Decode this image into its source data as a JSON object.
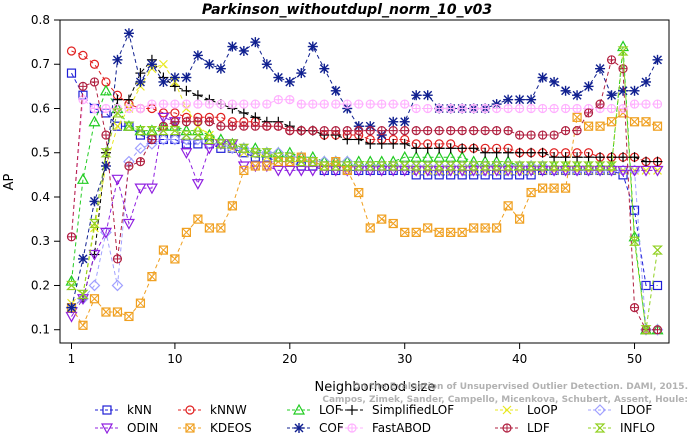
{
  "chart_data": {
    "type": "line",
    "title": "Parkinson_withoutdupl_norm_10_v03",
    "xlabel": "Neighborhood size",
    "ylabel": "AP",
    "xlim": [
      0,
      53
    ],
    "ylim": [
      0.07,
      0.8
    ],
    "xticks": [
      1,
      10,
      20,
      30,
      40,
      50
    ],
    "yticks": [
      0.1,
      0.2,
      0.3,
      0.4,
      0.5,
      0.6,
      0.7,
      0.8
    ],
    "xtick_labels": [
      "1",
      "10",
      "20",
      "30",
      "40",
      "50"
    ],
    "ytick_labels": [
      "0.1",
      "0.2",
      "0.3",
      "0.4",
      "0.5",
      "0.6",
      "0.7",
      "0.8"
    ],
    "grid": false,
    "legend_position": "bottom",
    "watermark": "Campos, Zimek, Sander, Campello, Micenkova, Schubert, Assent, Houle: On the Evaluation of Unsupervised Outlier Detection. DAMI, 2015.",
    "x": [
      1,
      2,
      3,
      4,
      5,
      6,
      7,
      8,
      9,
      10,
      11,
      12,
      13,
      14,
      15,
      16,
      17,
      18,
      19,
      20,
      21,
      22,
      23,
      24,
      25,
      26,
      27,
      28,
      29,
      30,
      31,
      32,
      33,
      34,
      35,
      36,
      37,
      38,
      39,
      40,
      41,
      42,
      43,
      44,
      45,
      46,
      47,
      48,
      49,
      50,
      51,
      52
    ],
    "series": [
      {
        "name": "kNN",
        "color": "#1f1fd6",
        "marker": "square",
        "values": [
          0.68,
          0.63,
          0.6,
          0.59,
          0.56,
          0.56,
          0.54,
          0.53,
          0.53,
          0.53,
          0.52,
          0.52,
          0.52,
          0.51,
          0.51,
          0.5,
          0.49,
          0.49,
          0.48,
          0.48,
          0.47,
          0.47,
          0.46,
          0.46,
          0.46,
          0.46,
          0.46,
          0.46,
          0.46,
          0.46,
          0.45,
          0.45,
          0.45,
          0.45,
          0.45,
          0.45,
          0.45,
          0.45,
          0.45,
          0.45,
          0.45,
          0.46,
          0.46,
          0.46,
          0.46,
          0.46,
          0.46,
          0.46,
          0.45,
          0.37,
          0.2,
          0.2
        ]
      },
      {
        "name": "kNNW",
        "color": "#e02020",
        "marker": "circle",
        "values": [
          0.73,
          0.72,
          0.7,
          0.66,
          0.63,
          0.61,
          0.6,
          0.6,
          0.59,
          0.59,
          0.58,
          0.58,
          0.58,
          0.58,
          0.57,
          0.57,
          0.57,
          0.56,
          0.56,
          0.55,
          0.55,
          0.55,
          0.54,
          0.54,
          0.54,
          0.54,
          0.53,
          0.53,
          0.53,
          0.53,
          0.52,
          0.52,
          0.52,
          0.52,
          0.51,
          0.51,
          0.51,
          0.51,
          0.51,
          0.5,
          0.5,
          0.5,
          0.5,
          0.5,
          0.5,
          0.5,
          0.49,
          0.49,
          0.49,
          0.49,
          0.48,
          0.48
        ]
      },
      {
        "name": "LOF",
        "color": "#22cc22",
        "marker": "triangle-up",
        "values": [
          0.21,
          0.44,
          0.57,
          0.64,
          0.6,
          0.56,
          0.55,
          0.55,
          0.56,
          0.56,
          0.55,
          0.55,
          0.54,
          0.53,
          0.52,
          0.51,
          0.51,
          0.5,
          0.5,
          0.5,
          0.49,
          0.49,
          0.48,
          0.48,
          0.48,
          0.48,
          0.48,
          0.48,
          0.48,
          0.49,
          0.49,
          0.49,
          0.49,
          0.49,
          0.49,
          0.48,
          0.48,
          0.48,
          0.48,
          0.47,
          0.47,
          0.47,
          0.47,
          0.47,
          0.47,
          0.47,
          0.47,
          0.47,
          0.74,
          0.31,
          0.1,
          0.1
        ]
      },
      {
        "name": "SimplifiedLOF",
        "color": "#000000",
        "marker": "plus",
        "values": [
          0.15,
          0.17,
          0.27,
          0.5,
          0.62,
          0.62,
          0.68,
          0.71,
          0.67,
          0.65,
          0.64,
          0.63,
          0.62,
          0.61,
          0.6,
          0.59,
          0.58,
          0.57,
          0.57,
          0.56,
          0.55,
          0.55,
          0.54,
          0.54,
          0.53,
          0.53,
          0.52,
          0.52,
          0.52,
          0.52,
          0.51,
          0.51,
          0.51,
          0.51,
          0.51,
          0.51,
          0.5,
          0.5,
          0.5,
          0.5,
          0.5,
          0.5,
          0.49,
          0.49,
          0.49,
          0.49,
          0.49,
          0.49,
          0.49,
          0.49,
          0.48,
          0.48
        ]
      },
      {
        "name": "LoOP",
        "color": "#e8e820",
        "marker": "x",
        "values": [
          0.16,
          0.18,
          0.33,
          0.47,
          0.56,
          0.6,
          0.65,
          0.69,
          0.7,
          0.66,
          0.6,
          0.56,
          0.54,
          0.52,
          0.51,
          0.5,
          0.5,
          0.49,
          0.49,
          0.48,
          0.48,
          0.48,
          0.47,
          0.47,
          0.47,
          0.47,
          0.47,
          0.47,
          0.47,
          0.47,
          0.46,
          0.46,
          0.46,
          0.46,
          0.46,
          0.46,
          0.46,
          0.46,
          0.46,
          0.46,
          0.46,
          0.46,
          0.46,
          0.46,
          0.46,
          0.46,
          0.46,
          0.46,
          0.46,
          0.46,
          0.46,
          0.46
        ]
      },
      {
        "name": "LDOF",
        "color": "#a0a0ff",
        "marker": "diamond",
        "values": [
          0.15,
          0.17,
          0.2,
          0.32,
          0.2,
          0.48,
          0.51,
          0.52,
          0.53,
          0.53,
          0.53,
          0.53,
          0.52,
          0.52,
          0.51,
          0.51,
          0.5,
          0.5,
          0.5,
          0.49,
          0.49,
          0.48,
          0.48,
          0.48,
          0.48,
          0.47,
          0.47,
          0.47,
          0.47,
          0.47,
          0.47,
          0.47,
          0.47,
          0.47,
          0.47,
          0.47,
          0.47,
          0.47,
          0.47,
          0.47,
          0.47,
          0.47,
          0.46,
          0.46,
          0.46,
          0.46,
          0.46,
          0.46,
          0.46,
          0.46,
          0.1,
          0.1
        ]
      },
      {
        "name": "ODIN",
        "color": "#9020e0",
        "marker": "triangle-down",
        "values": [
          0.13,
          0.17,
          0.27,
          0.32,
          0.44,
          0.34,
          0.42,
          0.42,
          0.58,
          0.57,
          0.5,
          0.43,
          0.51,
          0.52,
          0.52,
          0.47,
          0.47,
          0.47,
          0.46,
          0.46,
          0.46,
          0.46,
          0.46,
          0.46,
          0.46,
          0.46,
          0.46,
          0.46,
          0.46,
          0.46,
          0.46,
          0.46,
          0.46,
          0.46,
          0.46,
          0.46,
          0.46,
          0.46,
          0.46,
          0.46,
          0.46,
          0.46,
          0.46,
          0.46,
          0.46,
          0.46,
          0.46,
          0.46,
          0.46,
          0.46,
          0.46,
          0.46
        ]
      },
      {
        "name": "KDEOS",
        "color": "#f0a020",
        "marker": "square-x",
        "values": [
          0.15,
          0.11,
          0.17,
          0.14,
          0.14,
          0.13,
          0.16,
          0.22,
          0.28,
          0.26,
          0.32,
          0.35,
          0.33,
          0.33,
          0.38,
          0.46,
          0.47,
          0.47,
          0.48,
          0.48,
          0.49,
          0.48,
          0.47,
          0.48,
          0.46,
          0.41,
          0.33,
          0.35,
          0.34,
          0.32,
          0.32,
          0.33,
          0.32,
          0.32,
          0.32,
          0.33,
          0.33,
          0.33,
          0.38,
          0.35,
          0.41,
          0.42,
          0.42,
          0.42,
          0.58,
          0.56,
          0.56,
          0.57,
          0.59,
          0.57,
          0.57,
          0.56
        ]
      },
      {
        "name": "COF",
        "color": "#102090",
        "marker": "asterisk",
        "values": [
          0.15,
          0.26,
          0.39,
          0.47,
          0.71,
          0.77,
          0.66,
          0.7,
          0.66,
          0.67,
          0.67,
          0.72,
          0.7,
          0.69,
          0.74,
          0.73,
          0.75,
          0.7,
          0.67,
          0.66,
          0.68,
          0.74,
          0.69,
          0.64,
          0.6,
          0.56,
          0.56,
          0.54,
          0.57,
          0.57,
          0.63,
          0.63,
          0.6,
          0.6,
          0.6,
          0.6,
          0.6,
          0.61,
          0.62,
          0.62,
          0.62,
          0.67,
          0.66,
          0.64,
          0.63,
          0.65,
          0.69,
          0.63,
          0.64,
          0.64,
          0.66,
          0.71
        ]
      },
      {
        "name": "FastABOD",
        "color": "#ffb0ff",
        "marker": "circle-plus",
        "values": [
          0.31,
          0.62,
          0.6,
          0.6,
          0.6,
          0.6,
          0.6,
          0.61,
          0.61,
          0.61,
          0.61,
          0.61,
          0.61,
          0.61,
          0.61,
          0.61,
          0.61,
          0.61,
          0.62,
          0.62,
          0.61,
          0.61,
          0.61,
          0.61,
          0.61,
          0.61,
          0.61,
          0.61,
          0.61,
          0.61,
          0.6,
          0.6,
          0.6,
          0.6,
          0.6,
          0.6,
          0.6,
          0.6,
          0.6,
          0.6,
          0.6,
          0.6,
          0.6,
          0.6,
          0.6,
          0.6,
          0.6,
          0.6,
          0.6,
          0.61,
          0.61,
          0.61
        ]
      },
      {
        "name": "LDF",
        "color": "#b02040",
        "marker": "circle-plus",
        "values": [
          0.31,
          0.65,
          0.66,
          0.54,
          0.26,
          0.47,
          0.48,
          0.53,
          0.56,
          0.57,
          0.57,
          0.57,
          0.57,
          0.56,
          0.56,
          0.56,
          0.56,
          0.56,
          0.56,
          0.55,
          0.55,
          0.55,
          0.55,
          0.55,
          0.55,
          0.55,
          0.55,
          0.55,
          0.55,
          0.55,
          0.55,
          0.55,
          0.55,
          0.55,
          0.55,
          0.55,
          0.55,
          0.55,
          0.55,
          0.54,
          0.54,
          0.54,
          0.54,
          0.55,
          0.55,
          0.59,
          0.61,
          0.71,
          0.69,
          0.15,
          0.1,
          0.1
        ]
      },
      {
        "name": "INFLO",
        "color": "#90d020",
        "marker": "hourglass",
        "values": [
          0.2,
          0.18,
          0.34,
          0.5,
          0.59,
          0.56,
          0.55,
          0.55,
          0.55,
          0.55,
          0.54,
          0.54,
          0.53,
          0.52,
          0.52,
          0.51,
          0.5,
          0.5,
          0.49,
          0.49,
          0.48,
          0.48,
          0.47,
          0.47,
          0.47,
          0.47,
          0.47,
          0.47,
          0.47,
          0.47,
          0.47,
          0.47,
          0.47,
          0.47,
          0.47,
          0.47,
          0.47,
          0.47,
          0.47,
          0.47,
          0.47,
          0.47,
          0.47,
          0.47,
          0.47,
          0.47,
          0.47,
          0.47,
          0.73,
          0.3,
          0.1,
          0.28
        ]
      }
    ],
    "legend_order": [
      "kNN",
      "kNNW",
      "LOF",
      "SimplifiedLOF",
      "LoOP",
      "LDOF",
      "ODIN",
      "KDEOS",
      "COF",
      "FastABOD",
      "LDF",
      "INFLO"
    ]
  }
}
